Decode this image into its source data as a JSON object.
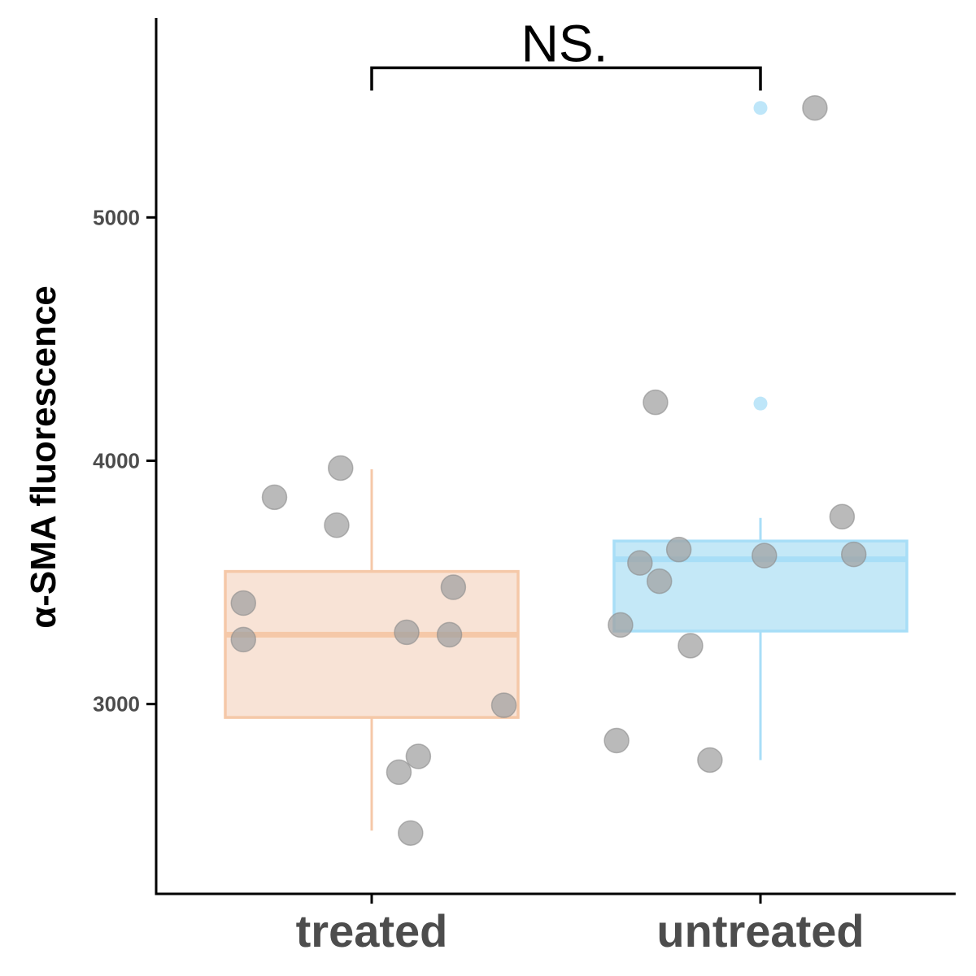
{
  "chart_data": {
    "type": "box",
    "ylabel": "α-SMA fluorescence",
    "xlabel": "",
    "ylim": [
      2220,
      5820
    ],
    "yticks": [
      3000,
      4000,
      5000
    ],
    "categories": [
      "treated",
      "untreated"
    ],
    "boxes": [
      {
        "category": "treated",
        "whisker_low": 2480,
        "q1": 2945,
        "median": 3285,
        "q3": 3545,
        "whisker_high": 3965,
        "color": "#f5c8a8",
        "fill": "#f8e3d6",
        "outliers": []
      },
      {
        "category": "untreated",
        "whisker_low": 2770,
        "q1": 3300,
        "median": 3595,
        "q3": 3670,
        "whisker_high": 3765,
        "color": "#a8def7",
        "fill": "#c4e8f7",
        "outliers": [
          5450,
          4235
        ]
      }
    ],
    "points": [
      {
        "category": "treated",
        "y": 3970,
        "jitter": -0.08
      },
      {
        "category": "treated",
        "y": 3850,
        "jitter": -0.25
      },
      {
        "category": "treated",
        "y": 3735,
        "jitter": -0.09
      },
      {
        "category": "treated",
        "y": 3480,
        "jitter": 0.21
      },
      {
        "category": "treated",
        "y": 3415,
        "jitter": -0.33
      },
      {
        "category": "treated",
        "y": 3265,
        "jitter": -0.33
      },
      {
        "category": "treated",
        "y": 3295,
        "jitter": 0.09
      },
      {
        "category": "treated",
        "y": 3285,
        "jitter": 0.2
      },
      {
        "category": "treated",
        "y": 2995,
        "jitter": 0.34
      },
      {
        "category": "treated",
        "y": 2785,
        "jitter": 0.12
      },
      {
        "category": "treated",
        "y": 2720,
        "jitter": 0.07
      },
      {
        "category": "treated",
        "y": 2470,
        "jitter": 0.1
      },
      {
        "category": "untreated",
        "y": 5450,
        "jitter": 0.14
      },
      {
        "category": "untreated",
        "y": 4240,
        "jitter": -0.27
      },
      {
        "category": "untreated",
        "y": 3770,
        "jitter": 0.21
      },
      {
        "category": "untreated",
        "y": 3635,
        "jitter": -0.21
      },
      {
        "category": "untreated",
        "y": 3610,
        "jitter": 0.01
      },
      {
        "category": "untreated",
        "y": 3615,
        "jitter": 0.24
      },
      {
        "category": "untreated",
        "y": 3580,
        "jitter": -0.31
      },
      {
        "category": "untreated",
        "y": 3505,
        "jitter": -0.26
      },
      {
        "category": "untreated",
        "y": 3325,
        "jitter": -0.36
      },
      {
        "category": "untreated",
        "y": 3240,
        "jitter": -0.18
      },
      {
        "category": "untreated",
        "y": 2850,
        "jitter": -0.37
      },
      {
        "category": "untreated",
        "y": 2770,
        "jitter": -0.13
      }
    ],
    "significance": {
      "label": "NS.",
      "from": "treated",
      "to": "untreated",
      "y": 5615
    },
    "point_color": "#a0a0a0",
    "axis_color": "#000000",
    "grid": false
  }
}
